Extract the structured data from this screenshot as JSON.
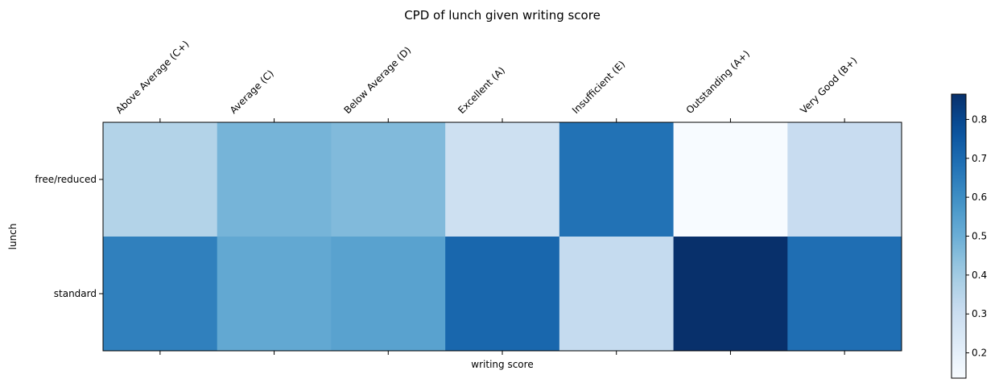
{
  "chart_data": {
    "type": "heatmap",
    "title": "CPD of lunch given writing score",
    "xlabel": "writing score",
    "ylabel": "lunch",
    "x_categories": [
      "Above Average (C+)",
      "Average (C)",
      "Below Average (D)",
      "Excellent (A)",
      "Insufficient (E)",
      "Outstanding (A+)",
      "Very Good (B+)"
    ],
    "y_categories": [
      "free/reduced",
      "standard"
    ],
    "values": [
      [
        0.36,
        0.48,
        0.46,
        0.29,
        0.68,
        0.135,
        0.31
      ],
      [
        0.64,
        0.52,
        0.54,
        0.71,
        0.32,
        0.865,
        0.69
      ]
    ],
    "colormap": "Blues",
    "colorbar": {
      "min": 0.135,
      "max": 0.865,
      "ticks": [
        0.2,
        0.3,
        0.4,
        0.5,
        0.6,
        0.7,
        0.8
      ],
      "tick_labels": [
        "0.2",
        "0.3",
        "0.4",
        "0.5",
        "0.6",
        "0.7",
        "0.8"
      ]
    },
    "grid": false,
    "colorbar_placement": "right",
    "x_tick_position": "top"
  }
}
